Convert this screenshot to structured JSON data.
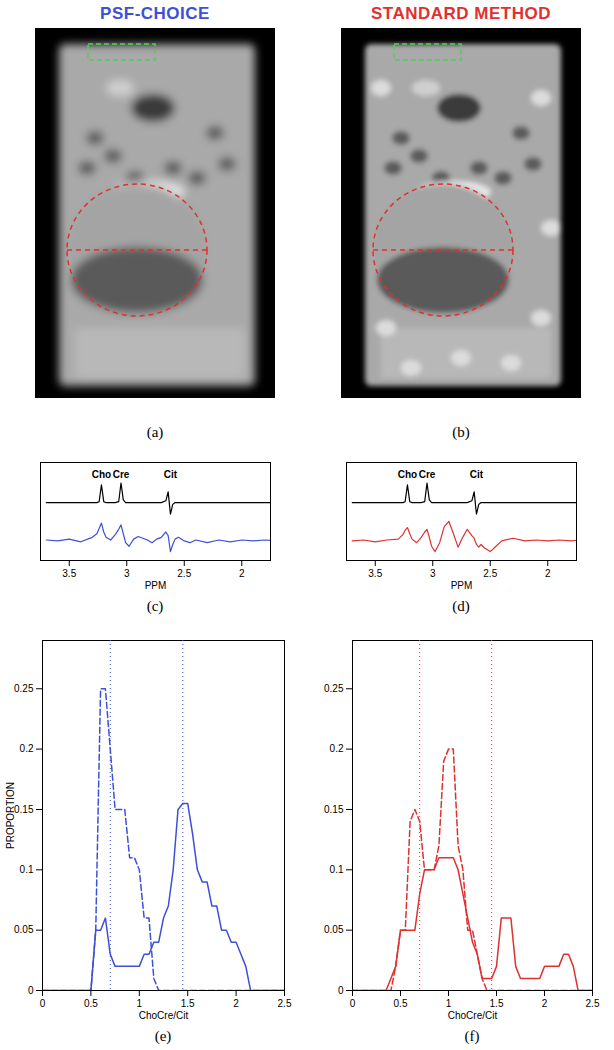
{
  "chart_data": [
    {
      "type": "image",
      "title": "PSF-CHOICE",
      "caption": "(a)"
    },
    {
      "type": "image",
      "title": "STANDARD METHOD",
      "caption": "(b)"
    },
    {
      "type": "line",
      "caption": "(c)",
      "xlabel": "PPM",
      "xlim": [
        3.75,
        1.75
      ],
      "xticks": [
        3.5,
        3,
        2.5,
        2
      ],
      "ylim": [
        0,
        11
      ],
      "tick_labels": "x",
      "annotations": [
        {
          "text": "Cho",
          "x": 3.22
        },
        {
          "text": "Cre",
          "x": 3.05
        },
        {
          "text": "Cit",
          "x": 2.62
        }
      ],
      "x": [
        3.7,
        3.6,
        3.5,
        3.4,
        3.3,
        3.26,
        3.24,
        3.22,
        3.2,
        3.18,
        3.14,
        3.1,
        3.07,
        3.05,
        3.03,
        3.01,
        2.98,
        2.94,
        2.9,
        2.86,
        2.82,
        2.78,
        2.74,
        2.7,
        2.66,
        2.64,
        2.62,
        2.6,
        2.58,
        2.55,
        2.5,
        2.45,
        2.4,
        2.3,
        2.2,
        2.1,
        2.0,
        1.9,
        1.8,
        1.7
      ],
      "series": [
        {
          "color": "#000000",
          "line_style": "solid",
          "values": [
            6.5,
            6.5,
            6.5,
            6.5,
            6.5,
            6.5,
            6.6,
            8.5,
            6.6,
            6.5,
            6.5,
            6.5,
            6.6,
            8.7,
            6.8,
            6.5,
            6.5,
            6.5,
            6.5,
            6.5,
            6.5,
            6.5,
            6.5,
            6.5,
            6.7,
            7.7,
            5.2,
            6.3,
            6.5,
            6.5,
            6.5,
            6.5,
            6.5,
            6.5,
            6.5,
            6.5,
            6.5,
            6.5,
            6.5,
            6.5
          ]
        },
        {
          "color": "#3c50d8",
          "line_style": "solid",
          "values": [
            2.3,
            2.2,
            2.4,
            2.1,
            2.6,
            3.0,
            3.6,
            4.2,
            3.2,
            2.6,
            2.3,
            2.9,
            3.5,
            4.0,
            3.0,
            2.0,
            1.6,
            2.4,
            2.7,
            2.5,
            2.3,
            2.0,
            2.4,
            2.6,
            3.2,
            2.8,
            1.0,
            1.8,
            2.4,
            2.6,
            2.2,
            2.0,
            2.3,
            2.0,
            2.3,
            2.1,
            2.3,
            2.2,
            2.3,
            2.2
          ]
        }
      ]
    },
    {
      "type": "line",
      "caption": "(d)",
      "xlabel": "PPM",
      "xlim": [
        3.75,
        1.75
      ],
      "xticks": [
        3.5,
        3,
        2.5,
        2
      ],
      "ylim": [
        0,
        11
      ],
      "tick_labels": "x",
      "annotations": [
        {
          "text": "Cho",
          "x": 3.22
        },
        {
          "text": "Cre",
          "x": 3.05
        },
        {
          "text": "Cit",
          "x": 2.62
        }
      ],
      "x": [
        3.7,
        3.6,
        3.5,
        3.4,
        3.3,
        3.26,
        3.24,
        3.22,
        3.2,
        3.18,
        3.14,
        3.1,
        3.07,
        3.05,
        3.03,
        3.01,
        2.98,
        2.94,
        2.9,
        2.86,
        2.82,
        2.78,
        2.74,
        2.7,
        2.66,
        2.64,
        2.62,
        2.6,
        2.58,
        2.55,
        2.5,
        2.45,
        2.4,
        2.3,
        2.2,
        2.1,
        2.0,
        1.9,
        1.8,
        1.7
      ],
      "series": [
        {
          "color": "#000000",
          "line_style": "solid",
          "values": [
            6.5,
            6.5,
            6.5,
            6.5,
            6.5,
            6.5,
            6.6,
            8.5,
            6.6,
            6.5,
            6.5,
            6.5,
            6.6,
            8.7,
            6.8,
            6.5,
            6.5,
            6.5,
            6.5,
            6.5,
            6.5,
            6.5,
            6.5,
            6.5,
            6.7,
            7.7,
            5.2,
            6.3,
            6.5,
            6.5,
            6.5,
            6.5,
            6.5,
            6.5,
            6.5,
            6.5,
            6.5,
            6.5,
            6.5,
            6.5
          ]
        },
        {
          "color": "#e03030",
          "line_style": "solid",
          "values": [
            2.2,
            2.3,
            2.1,
            2.3,
            2.4,
            2.9,
            3.4,
            3.7,
            3.0,
            2.4,
            2.0,
            2.6,
            3.2,
            3.5,
            2.6,
            1.6,
            1.0,
            2.0,
            3.8,
            4.4,
            3.0,
            1.5,
            2.6,
            3.5,
            2.8,
            2.5,
            1.8,
            1.5,
            1.8,
            1.4,
            1.0,
            1.6,
            2.2,
            2.5,
            2.2,
            2.3,
            2.2,
            2.3,
            2.2,
            2.3
          ]
        }
      ]
    },
    {
      "type": "line",
      "caption": "(e)",
      "xlabel": "ChoCre/Cit",
      "ylabel": "PROPORTION",
      "xlim": [
        0,
        2.5
      ],
      "xticks": [
        0,
        0.5,
        1,
        1.5,
        2,
        2.5
      ],
      "ylim": [
        0,
        0.29
      ],
      "yticks": [
        0,
        0.05,
        0.1,
        0.15,
        0.2,
        0.25
      ],
      "reference_lines": [
        0.7,
        1.45
      ],
      "x": [
        0,
        0.05,
        0.1,
        0.15,
        0.2,
        0.25,
        0.3,
        0.35,
        0.4,
        0.45,
        0.5,
        0.55,
        0.6,
        0.65,
        0.7,
        0.75,
        0.8,
        0.85,
        0.9,
        0.95,
        1,
        1.05,
        1.1,
        1.15,
        1.2,
        1.25,
        1.3,
        1.35,
        1.4,
        1.45,
        1.5,
        1.55,
        1.6,
        1.65,
        1.7,
        1.75,
        1.8,
        1.85,
        1.9,
        1.95,
        2,
        2.05,
        2.1,
        2.15,
        2.2,
        2.25,
        2.3,
        2.35,
        2.4,
        2.45,
        2.5
      ],
      "series": [
        {
          "color": "#3c50d8",
          "line_style": "dashed",
          "values": [
            0,
            0,
            0,
            0,
            0,
            0,
            0,
            0,
            0,
            0,
            0,
            0.05,
            0.25,
            0.25,
            0.2,
            0.15,
            0.15,
            0.15,
            0.11,
            0.11,
            0.1,
            0.06,
            0.06,
            0.01,
            0,
            0,
            0,
            0,
            0,
            0,
            0,
            0,
            0,
            0,
            0,
            0,
            0,
            0,
            0,
            0,
            0,
            0,
            0,
            0,
            0,
            0,
            0,
            0,
            0,
            0,
            0
          ]
        },
        {
          "color": "#3c50d8",
          "line_style": "solid",
          "values": [
            0,
            0,
            0,
            0,
            0,
            0,
            0,
            0,
            0,
            0,
            0,
            0.05,
            0.05,
            0.06,
            0.03,
            0.02,
            0.02,
            0.02,
            0.02,
            0.02,
            0.02,
            0.03,
            0.03,
            0.04,
            0.04,
            0.06,
            0.07,
            0.1,
            0.15,
            0.155,
            0.155,
            0.13,
            0.1,
            0.09,
            0.09,
            0.07,
            0.07,
            0.05,
            0.05,
            0.04,
            0.04,
            0.03,
            0.02,
            0,
            0,
            0,
            0,
            0,
            0,
            0,
            0
          ]
        }
      ]
    },
    {
      "type": "line",
      "caption": "(f)",
      "xlabel": "ChoCre/Cit",
      "xlim": [
        0,
        2.5
      ],
      "xticks": [
        0,
        0.5,
        1,
        1.5,
        2,
        2.5
      ],
      "ylim": [
        0,
        0.29
      ],
      "yticks": [
        0,
        0.05,
        0.1,
        0.15,
        0.2,
        0.25
      ],
      "reference_lines": [
        0.7,
        1.45
      ],
      "x": [
        0,
        0.05,
        0.1,
        0.15,
        0.2,
        0.25,
        0.3,
        0.35,
        0.4,
        0.45,
        0.5,
        0.55,
        0.6,
        0.65,
        0.7,
        0.75,
        0.8,
        0.85,
        0.9,
        0.95,
        1,
        1.05,
        1.1,
        1.15,
        1.2,
        1.25,
        1.3,
        1.35,
        1.4,
        1.45,
        1.5,
        1.55,
        1.6,
        1.65,
        1.7,
        1.75,
        1.8,
        1.85,
        1.9,
        1.95,
        2,
        2.05,
        2.1,
        2.15,
        2.2,
        2.25,
        2.3,
        2.35,
        2.4,
        2.45,
        2.5
      ],
      "series": [
        {
          "color": "#e03030",
          "line_style": "dashed",
          "values": [
            0,
            0,
            0,
            0,
            0,
            0,
            0,
            0,
            0,
            0.02,
            0.05,
            0.05,
            0.14,
            0.15,
            0.14,
            0.1,
            0.1,
            0.1,
            0.12,
            0.19,
            0.2,
            0.2,
            0.12,
            0.1,
            0.05,
            0.05,
            0.03,
            0.01,
            0,
            0,
            0,
            0,
            0,
            0,
            0,
            0,
            0,
            0,
            0,
            0,
            0,
            0,
            0,
            0,
            0,
            0,
            0,
            0,
            0,
            0,
            0
          ]
        },
        {
          "color": "#e03030",
          "line_style": "solid",
          "values": [
            0,
            0,
            0,
            0,
            0,
            0,
            0,
            0,
            0.01,
            0.02,
            0.05,
            0.05,
            0.05,
            0.05,
            0.08,
            0.1,
            0.1,
            0.1,
            0.11,
            0.11,
            0.11,
            0.11,
            0.1,
            0.08,
            0.06,
            0.04,
            0.03,
            0.01,
            0.01,
            0.01,
            0.02,
            0.06,
            0.06,
            0.06,
            0.02,
            0.01,
            0.01,
            0.01,
            0.01,
            0.01,
            0.02,
            0.02,
            0.02,
            0.02,
            0.03,
            0.03,
            0.02,
            0,
            0,
            0,
            0
          ]
        }
      ]
    }
  ]
}
